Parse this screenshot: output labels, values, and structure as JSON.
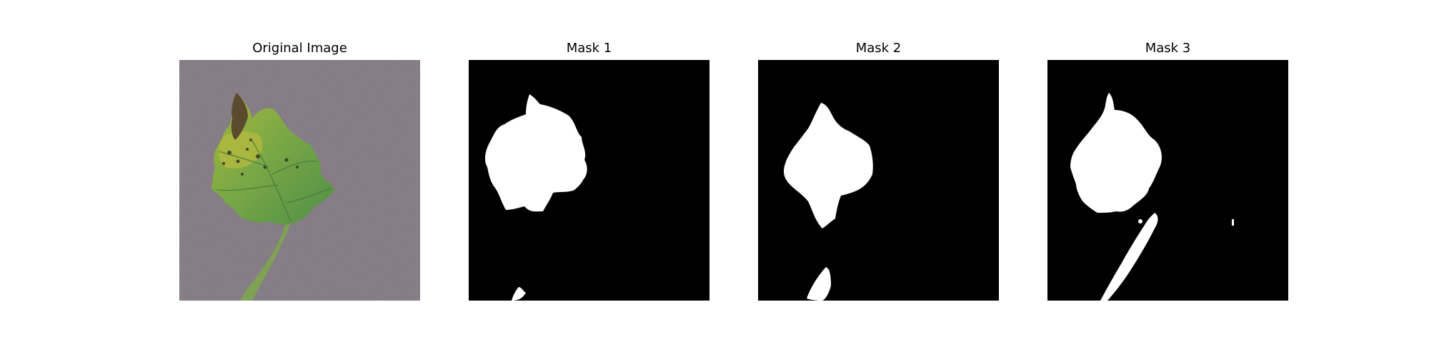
{
  "panels": [
    {
      "title": "Original Image"
    },
    {
      "title": "Mask 1"
    },
    {
      "title": "Mask 2"
    },
    {
      "title": "Mask 3"
    }
  ],
  "colors": {
    "background": "#7a7079",
    "leaf_green": "#5f9a4a",
    "leaf_yellow": "#9bb33b",
    "lesion": "#3a3224",
    "stem": "#7ea155",
    "mask_bg": "#000000",
    "mask_fg": "#ffffff"
  }
}
